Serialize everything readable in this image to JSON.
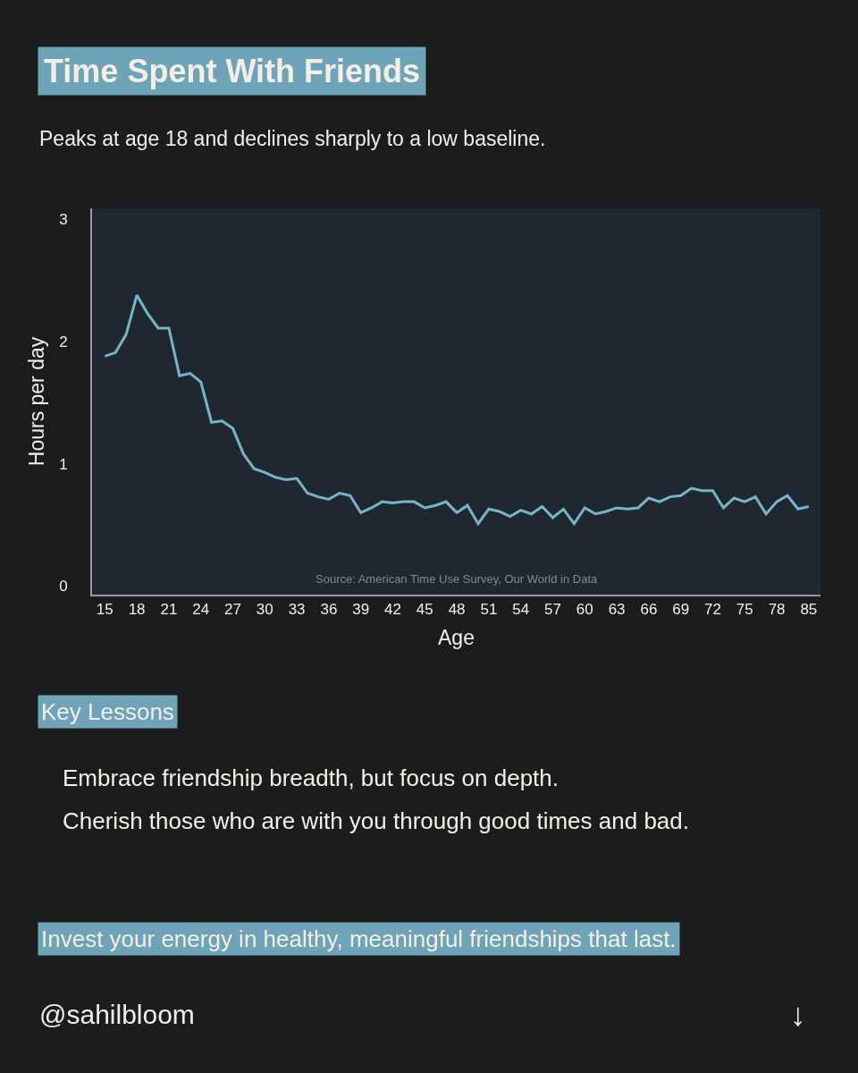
{
  "chart_data": {
    "type": "line",
    "title": "Time Spent With Friends",
    "subtitle": "Peaks at age 18 and declines sharply to a low baseline.",
    "xlabel": "Age",
    "ylabel": "Hours per day",
    "categories": [
      "15",
      null,
      null,
      "18",
      null,
      null,
      "21",
      null,
      null,
      "24",
      null,
      null,
      "27",
      null,
      null,
      "30",
      null,
      null,
      "33",
      null,
      null,
      "36",
      null,
      null,
      "39",
      null,
      null,
      "42",
      null,
      null,
      "45",
      null,
      null,
      "48",
      null,
      null,
      "51",
      null,
      null,
      "54",
      null,
      null,
      "57",
      null,
      null,
      "60",
      null,
      null,
      "63",
      null,
      null,
      "66",
      null,
      null,
      "69",
      null,
      null,
      "72",
      null,
      null,
      "75",
      null,
      null,
      "78",
      null,
      null,
      "85"
    ],
    "series": [
      {
        "color": "#7ab3c8",
        "values": [
          1.88,
          1.91,
          2.06,
          2.38,
          2.23,
          2.11,
          2.11,
          1.72,
          1.74,
          1.67,
          1.34,
          1.35,
          1.29,
          1.08,
          0.96,
          0.93,
          0.89,
          0.87,
          0.88,
          0.76,
          0.73,
          0.71,
          0.76,
          0.74,
          0.6,
          0.64,
          0.69,
          0.68,
          0.69,
          0.69,
          0.64,
          0.66,
          0.69,
          0.6,
          0.66,
          0.51,
          0.63,
          0.61,
          0.57,
          0.62,
          0.59,
          0.65,
          0.56,
          0.63,
          0.51,
          0.64,
          0.59,
          0.61,
          0.64,
          0.63,
          0.64,
          0.72,
          0.69,
          0.73,
          0.74,
          0.8,
          0.78,
          0.78,
          0.64,
          0.72,
          0.69,
          0.73,
          0.59,
          0.69,
          0.74,
          0.63,
          0.65
        ]
      }
    ],
    "ylim": [
      -0.07,
      3.09
    ],
    "yticks": [
      0,
      1,
      2,
      3
    ],
    "grid": false,
    "marker": "none",
    "line_style": "solid",
    "annotations": [
      "Source: American Time Use Survey, Our World in Data",
      "Key Lessons",
      "Embrace friendship breadth, but focus on depth.",
      "Cherish those who are with you through good times and bad.",
      "Invest your energy in healthy, meaningful friendships that last.",
      "@sahilbloom",
      "↓"
    ]
  }
}
